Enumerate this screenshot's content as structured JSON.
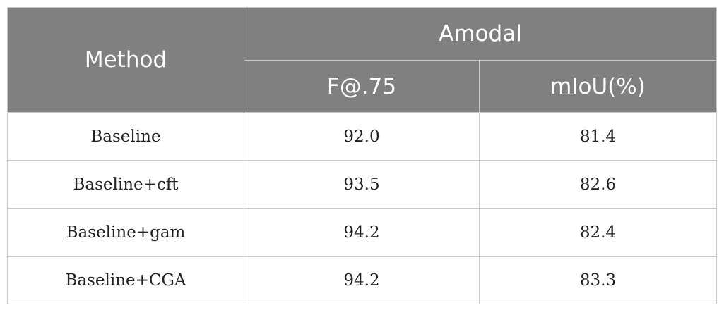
{
  "table": {
    "header": {
      "method": "Method",
      "group": "Amodal",
      "col1": "F@.75",
      "col2": "mIoU(%)"
    },
    "rows": [
      {
        "method": "Baseline",
        "f75": "92.0",
        "miou": "81.4"
      },
      {
        "method": "Baseline+cft",
        "f75": "93.5",
        "miou": "82.6"
      },
      {
        "method": "Baseline+gam",
        "f75": "94.2",
        "miou": "82.4"
      },
      {
        "method": "Baseline+CGA",
        "f75": "94.2",
        "miou": "83.3"
      }
    ]
  }
}
